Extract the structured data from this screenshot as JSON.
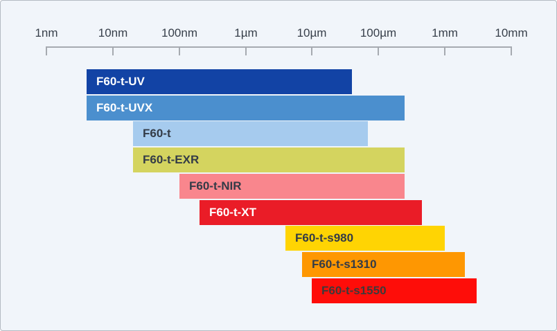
{
  "chart_data": {
    "type": "bar",
    "subtype": "horizontal-range-bars",
    "title": "",
    "scale": "log10",
    "legend": "none",
    "grid": false,
    "axis": {
      "unit": "nm",
      "min_nm": 1,
      "max_nm": 10000000,
      "position": "top",
      "ticks": [
        {
          "value_nm": 1,
          "label": "1nm"
        },
        {
          "value_nm": 10,
          "label": "10nm"
        },
        {
          "value_nm": 100,
          "label": "100nm"
        },
        {
          "value_nm": 1000,
          "label": "1µm"
        },
        {
          "value_nm": 10000,
          "label": "10µm"
        },
        {
          "value_nm": 100000,
          "label": "100µm"
        },
        {
          "value_nm": 1000000,
          "label": "1mm"
        },
        {
          "value_nm": 10000000,
          "label": "10mm"
        }
      ]
    },
    "series": [
      {
        "name": "F60-t-UV",
        "min_nm": 4,
        "max_nm": 40000,
        "bar_color": "#1243a5",
        "label_color": "#ffffff"
      },
      {
        "name": "F60-t-UVX",
        "min_nm": 4,
        "max_nm": 250000,
        "bar_color": "#4b8fce",
        "label_color": "#ffffff"
      },
      {
        "name": "F60-t",
        "min_nm": 20,
        "max_nm": 70000,
        "bar_color": "#a6cbee",
        "label_color": "#333b47"
      },
      {
        "name": "F60-t-EXR",
        "min_nm": 20,
        "max_nm": 250000,
        "bar_color": "#d4d45f",
        "label_color": "#333b47"
      },
      {
        "name": "F60-t-NIR",
        "min_nm": 100,
        "max_nm": 250000,
        "bar_color": "#f9868d",
        "label_color": "#333b47"
      },
      {
        "name": "F60-t-XT",
        "min_nm": 200,
        "max_nm": 450000,
        "bar_color": "#ea1c27",
        "label_color": "#ffffff"
      },
      {
        "name": "F60-t-s980",
        "min_nm": 4000,
        "max_nm": 1000000,
        "bar_color": "#ffd403",
        "label_color": "#333b47"
      },
      {
        "name": "F60-t-s1310",
        "min_nm": 7000,
        "max_nm": 2000000,
        "bar_color": "#fe9702",
        "label_color": "#333b47"
      },
      {
        "name": "F60-t-s1550",
        "min_nm": 10000,
        "max_nm": 3000000,
        "bar_color": "#fe0d09",
        "label_color": "#3d3a3a"
      }
    ]
  },
  "colors": {
    "background": "#f1f5fa",
    "frame_border": "#b4bac2",
    "axis_line": "#a6aab0",
    "tick_label": "#373f4a"
  }
}
